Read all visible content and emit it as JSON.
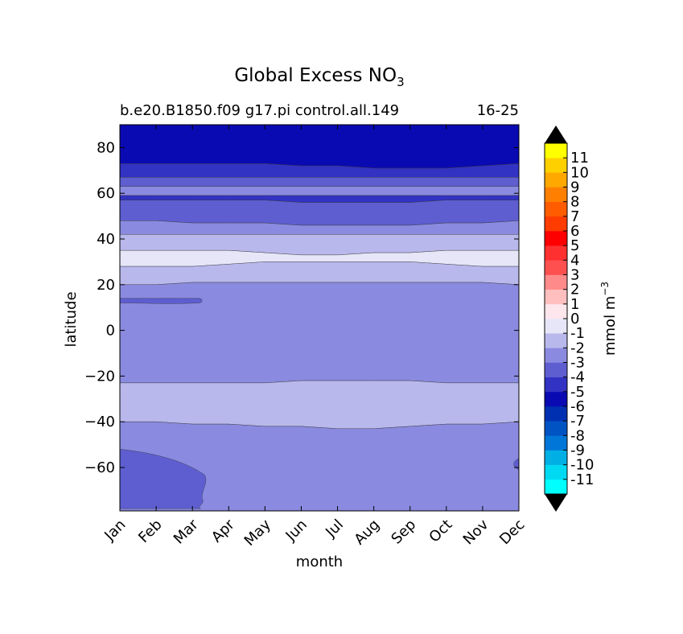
{
  "chart_data": {
    "type": "heatmap",
    "title": "Global Excess NO",
    "title_subscript": "3",
    "subtitle_left": "b.e20.B1850.f09 g17.pi control.all.149",
    "subtitle_right": "16-25",
    "xlabel": "month",
    "ylabel": "latitude",
    "x_categories": [
      "Jan",
      "Feb",
      "Mar",
      "Apr",
      "May",
      "Jun",
      "Jul",
      "Aug",
      "Sep",
      "Oct",
      "Nov",
      "Dec"
    ],
    "y_ticks": [
      80,
      60,
      40,
      20,
      0,
      -20,
      -40,
      -60
    ],
    "y_tick_labels": [
      "80",
      "60",
      "40",
      "20",
      "0",
      "−20",
      "−40",
      "−60"
    ],
    "ylim": [
      -79,
      90
    ],
    "grid": false,
    "colorbar": {
      "label": "mmol m",
      "label_superscript": "−3",
      "levels": [
        -11,
        -10,
        -9,
        -8,
        -7,
        -6,
        -5,
        -4,
        -3,
        -2,
        -1,
        0,
        1,
        2,
        3,
        4,
        5,
        6,
        7,
        8,
        9,
        10,
        11
      ],
      "tick_labels": [
        "11",
        "10",
        "9",
        "8",
        "7",
        "6",
        "5",
        "4",
        "3",
        "2",
        "1",
        "0",
        "-1",
        "-2",
        "-3",
        "-4",
        "-5",
        "-6",
        "-7",
        "-8",
        "-9",
        "-10",
        "-11"
      ],
      "colors": [
        "#00ffff",
        "#00d9f2",
        "#00b0e5",
        "#0076d8",
        "#0053c3",
        "#0030b2",
        "#0a0ab2",
        "#3232c3",
        "#5e5ed1",
        "#8a8ae0",
        "#b8b8ec",
        "#e6e6f8",
        "#fde6ec",
        "#ffbfbf",
        "#ff8a8a",
        "#ff5050",
        "#ff3030",
        "#ff0000",
        "#ff3c00",
        "#ff5c00",
        "#ff8000",
        "#ffa800",
        "#ffd000",
        "#ffff00"
      ],
      "extend": "both"
    },
    "bands": [
      {
        "level_from": -6,
        "level_to": -5,
        "lat_bottom": [
          73,
          73,
          73,
          73,
          73,
          72,
          72,
          71,
          71,
          71,
          72,
          73
        ],
        "lat_top": [
          90,
          90,
          90,
          90,
          90,
          90,
          90,
          90,
          90,
          90,
          90,
          90
        ]
      },
      {
        "level_from": -5,
        "level_to": -4,
        "lat_bottom": [
          67,
          67,
          67,
          67,
          67,
          67,
          67,
          67,
          67,
          67,
          67,
          67
        ],
        "lat_top": [
          73,
          73,
          73,
          73,
          73,
          72,
          72,
          71,
          71,
          71,
          72,
          73
        ]
      },
      {
        "level_from": -4,
        "level_to": -3,
        "lat_bottom": [
          63,
          63,
          63,
          63,
          63,
          63,
          63,
          63,
          63,
          63,
          63,
          63
        ],
        "lat_top": [
          67,
          67,
          67,
          67,
          67,
          67,
          67,
          67,
          67,
          67,
          67,
          67
        ]
      },
      {
        "level_from": -3,
        "level_to": -2,
        "lat_bottom": [
          59,
          59,
          59,
          59,
          59,
          59,
          59,
          59,
          59,
          59,
          59,
          59
        ],
        "lat_top": [
          63,
          63,
          63,
          63,
          63,
          63,
          63,
          63,
          63,
          63,
          63,
          63
        ]
      },
      {
        "level_from": -5,
        "level_to": -4,
        "lat_bottom": [
          57,
          57,
          57,
          57,
          57,
          56,
          56,
          56,
          56,
          57,
          57,
          57
        ],
        "lat_top": [
          59,
          59,
          59,
          59,
          59,
          59,
          59,
          59,
          59,
          59,
          59,
          59
        ]
      },
      {
        "level_from": -4,
        "level_to": -3,
        "lat_bottom": [
          48,
          48,
          47,
          47,
          47,
          46,
          46,
          46,
          46,
          47,
          47,
          48
        ],
        "lat_top": [
          57,
          57,
          57,
          57,
          57,
          56,
          56,
          56,
          56,
          57,
          57,
          57
        ]
      },
      {
        "level_from": -3,
        "level_to": -2,
        "lat_bottom": [
          42,
          42,
          42,
          42,
          42,
          42,
          42,
          42,
          42,
          42,
          42,
          42
        ],
        "lat_top": [
          48,
          48,
          47,
          47,
          47,
          46,
          46,
          46,
          46,
          47,
          47,
          48
        ]
      },
      {
        "level_from": -2,
        "level_to": -1,
        "lat_bottom": [
          35,
          35,
          35,
          35,
          34,
          33,
          33,
          34,
          34,
          35,
          35,
          35
        ],
        "lat_top": [
          42,
          42,
          42,
          42,
          42,
          42,
          42,
          42,
          42,
          42,
          42,
          42
        ]
      },
      {
        "level_from": -1,
        "level_to": 0,
        "lat_bottom": [
          28,
          28,
          28,
          29,
          30,
          30,
          30,
          30,
          30,
          29,
          28,
          28
        ],
        "lat_top": [
          35,
          35,
          35,
          35,
          34,
          33,
          33,
          34,
          34,
          35,
          35,
          35
        ]
      },
      {
        "level_from": -2,
        "level_to": -1,
        "lat_bottom": [
          20,
          20,
          21,
          21,
          21,
          21,
          21,
          21,
          21,
          21,
          21,
          20
        ],
        "lat_top": [
          28,
          28,
          28,
          29,
          30,
          30,
          30,
          30,
          30,
          29,
          28,
          28
        ]
      },
      {
        "level_from": -3,
        "level_to": -2,
        "lat_bottom": [
          -23,
          -23,
          -23,
          -23,
          -23,
          -22,
          -22,
          -22,
          -22,
          -23,
          -23,
          -23
        ],
        "lat_top": [
          20,
          20,
          21,
          21,
          21,
          21,
          21,
          21,
          21,
          21,
          21,
          20
        ]
      },
      {
        "level_from": -2,
        "level_to": -1,
        "lat_bottom": [
          -40,
          -40,
          -41,
          -41,
          -42,
          -42,
          -43,
          -43,
          -42,
          -41,
          -41,
          -40
        ],
        "lat_top": [
          -23,
          -23,
          -23,
          -23,
          -23,
          -22,
          -22,
          -22,
          -22,
          -23,
          -23,
          -23
        ]
      },
      {
        "level_from": -3,
        "level_to": -2,
        "lat_bottom": [
          -79,
          -79,
          -79,
          -79,
          -79,
          -79,
          -79,
          -79,
          -79,
          -79,
          -79,
          -79
        ],
        "lat_top": [
          -40,
          -40,
          -41,
          -41,
          -42,
          -42,
          -43,
          -43,
          -42,
          -41,
          -41,
          -40
        ]
      }
    ],
    "patches": [
      {
        "level_from": -4,
        "level_to": -3,
        "region": "south-west",
        "months": [
          0,
          2.45
        ],
        "lat": [
          -78,
          -52
        ]
      },
      {
        "level_from": -4,
        "level_to": -3,
        "region": "south-east-edge",
        "months": [
          10.9,
          11
        ],
        "lat": [
          -61,
          -56
        ]
      },
      {
        "level_from": -4,
        "level_to": -3,
        "region": "tropical-streak",
        "months": [
          0,
          2.2
        ],
        "lat": [
          12,
          14
        ]
      }
    ]
  }
}
